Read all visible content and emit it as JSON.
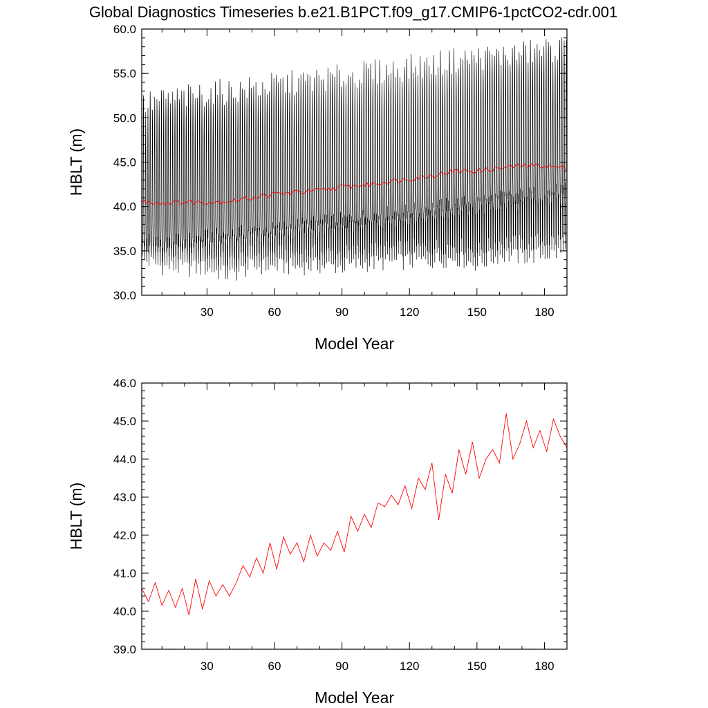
{
  "title": "Global Diagnostics Timeseries b.e21.B1PCT.f09_g17.CMIP6-1pctCO2-cdr.001",
  "colors": {
    "monthly_line": "#000000",
    "annual_line": "#ff0000",
    "frame": "#000000"
  },
  "chart_data": [
    {
      "type": "line",
      "xlabel": "Model Year",
      "ylabel": "HBLT (m)",
      "xlim": [
        1,
        190
      ],
      "ylim": [
        30.0,
        60.0
      ],
      "xticks": [
        30,
        60,
        90,
        120,
        150,
        180
      ],
      "xtick_labels": [
        "30",
        "60",
        "90",
        "120",
        "150",
        "180"
      ],
      "yticks": [
        30.0,
        35.0,
        40.0,
        45.0,
        50.0,
        55.0,
        60.0
      ],
      "ytick_labels": [
        "30.0",
        "35.0",
        "40.0",
        "45.0",
        "50.0",
        "55.0",
        "60.0"
      ],
      "grid": false,
      "series": [
        {
          "kind": "monthly",
          "color": "#000000",
          "note_values": "seasonal cycle per year: summer minimum, winter maximum",
          "x": [
            1,
            10,
            20,
            30,
            40,
            50,
            60,
            70,
            80,
            90,
            100,
            110,
            120,
            130,
            140,
            150,
            160,
            170,
            180,
            190
          ],
          "min": [
            34.0,
            33.2,
            33.0,
            33.0,
            32.2,
            33.2,
            33.2,
            33.2,
            33.3,
            33.2,
            33.5,
            33.7,
            33.8,
            33.9,
            34.2,
            33.5,
            34.5,
            34.3,
            34.6,
            34.8
          ],
          "max": [
            51.5,
            52.0,
            52.3,
            52.8,
            53.0,
            53.3,
            53.7,
            54.0,
            54.3,
            54.6,
            55.0,
            55.3,
            55.7,
            56.0,
            56.5,
            56.8,
            57.0,
            57.3,
            57.6,
            57.9
          ],
          "low_cluster": [
            36.2,
            36.0,
            36.3,
            36.7,
            37.0,
            37.3,
            37.6,
            38.0,
            38.3,
            38.6,
            39.0,
            39.3,
            39.6,
            40.0,
            40.4,
            40.7,
            41.1,
            41.4,
            41.7,
            42.0
          ]
        },
        {
          "kind": "annual",
          "color": "#ff0000",
          "x": [
            1,
            10,
            20,
            30,
            40,
            50,
            60,
            70,
            80,
            90,
            100,
            110,
            120,
            130,
            140,
            150,
            160,
            170,
            180,
            190
          ],
          "y": [
            40.6,
            40.4,
            40.5,
            40.5,
            40.6,
            41.0,
            41.4,
            41.6,
            41.8,
            42.2,
            42.4,
            42.8,
            43.1,
            43.5,
            44.0,
            44.0,
            44.3,
            44.6,
            44.6,
            44.3
          ]
        }
      ]
    },
    {
      "type": "line",
      "xlabel": "Model Year",
      "ylabel": "HBLT (m)",
      "xlim": [
        1,
        190
      ],
      "ylim": [
        39.0,
        46.0
      ],
      "xticks": [
        30,
        60,
        90,
        120,
        150,
        180
      ],
      "xtick_labels": [
        "30",
        "60",
        "90",
        "120",
        "150",
        "180"
      ],
      "yticks": [
        39.0,
        40.0,
        41.0,
        42.0,
        43.0,
        44.0,
        45.0,
        46.0
      ],
      "ytick_labels": [
        "39.0",
        "40.0",
        "41.0",
        "42.0",
        "43.0",
        "44.0",
        "45.0",
        "46.0"
      ],
      "grid": false,
      "series": [
        {
          "kind": "annual",
          "color": "#ff0000",
          "x": [
            1,
            4,
            7,
            10,
            13,
            16,
            19,
            22,
            25,
            28,
            31,
            34,
            37,
            40,
            43,
            46,
            49,
            52,
            55,
            58,
            61,
            64,
            67,
            70,
            73,
            76,
            79,
            82,
            85,
            88,
            91,
            94,
            97,
            100,
            103,
            106,
            109,
            112,
            115,
            118,
            121,
            124,
            127,
            130,
            133,
            136,
            139,
            142,
            145,
            148,
            151,
            154,
            157,
            160,
            163,
            166,
            169,
            172,
            175,
            178,
            181,
            184,
            187,
            190
          ],
          "y": [
            40.6,
            40.25,
            40.75,
            40.15,
            40.55,
            40.1,
            40.6,
            39.9,
            40.85,
            40.05,
            40.8,
            40.4,
            40.7,
            40.4,
            40.75,
            41.2,
            40.9,
            41.4,
            41.0,
            41.8,
            41.1,
            41.95,
            41.5,
            41.8,
            41.3,
            42.0,
            41.45,
            41.8,
            41.6,
            42.1,
            41.55,
            42.5,
            42.1,
            42.55,
            42.2,
            42.85,
            42.75,
            43.05,
            42.8,
            43.3,
            42.7,
            43.5,
            43.2,
            43.9,
            42.4,
            43.6,
            43.1,
            44.25,
            43.6,
            44.45,
            43.5,
            44.0,
            44.25,
            43.9,
            45.2,
            44.0,
            44.4,
            45.0,
            44.3,
            44.75,
            44.2,
            45.05,
            44.6,
            44.3
          ]
        }
      ]
    }
  ]
}
